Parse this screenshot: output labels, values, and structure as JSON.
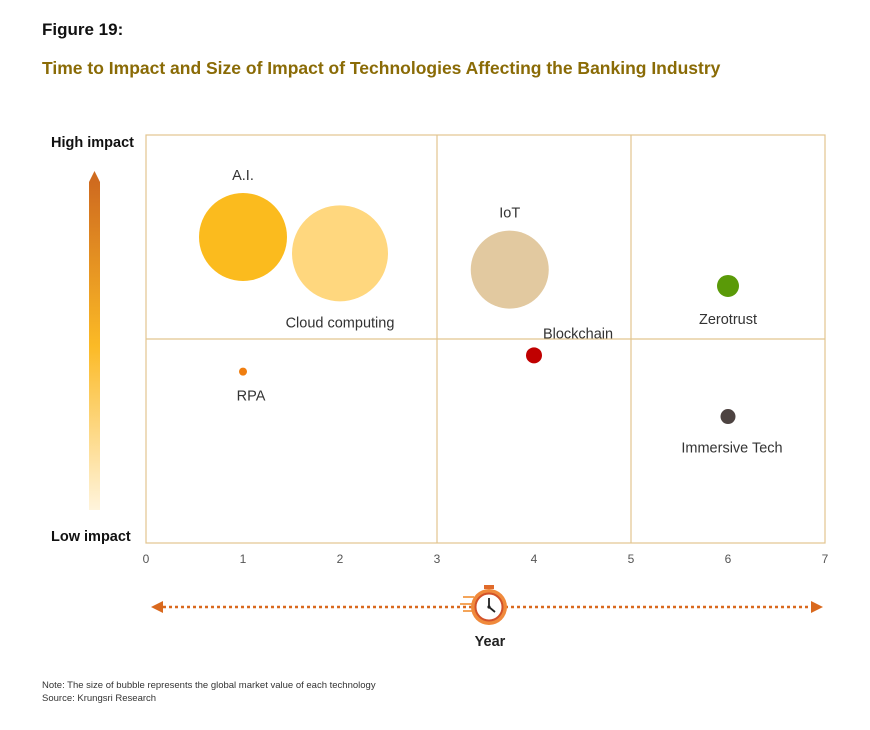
{
  "figure": {
    "label": "Figure 19:",
    "title": "Time to Impact and Size of Impact of Technologies Affecting the Banking Industry"
  },
  "colors": {
    "title": "#8a6b06",
    "grid": "#e2c58f",
    "axis_arrow": "#d9691e"
  },
  "chart_data": {
    "type": "scatter",
    "title": "",
    "xlabel": "Year",
    "ylabel_high": "High impact",
    "ylabel_low": "Low impact",
    "xlim": [
      0,
      7
    ],
    "ylim": [
      0,
      10
    ],
    "x_ticks": [
      0,
      1,
      2,
      3,
      4,
      5,
      6,
      7
    ],
    "grid_x": [
      3,
      5
    ],
    "grid_y": [
      5
    ],
    "legend": "none",
    "series": [
      {
        "label": "A.I.",
        "x": 1,
        "y": 7.5,
        "size": 88,
        "color": "#fbbb1e"
      },
      {
        "label": "Cloud computing",
        "x": 2,
        "y": 7.1,
        "size": 96,
        "color": "#ffd77e"
      },
      {
        "label": "IoT",
        "x": 3.75,
        "y": 6.7,
        "size": 78,
        "color": "#e2c9a0"
      },
      {
        "label": "Blockchain",
        "x": 4,
        "y": 4.6,
        "size": 16,
        "color": "#c00000"
      },
      {
        "label": "Zerotrust",
        "x": 6,
        "y": 6.3,
        "size": 22,
        "color": "#5a9a08"
      },
      {
        "label": "RPA",
        "x": 1,
        "y": 4.2,
        "size": 8,
        "color": "#f07e10"
      },
      {
        "label": "Immersive Tech",
        "x": 6,
        "y": 3.1,
        "size": 15,
        "color": "#4d4341"
      }
    ]
  },
  "notes": {
    "size_note": "Note: The size of bubble represents the global market value of each technology",
    "source": "Source: Krungsri Research"
  }
}
